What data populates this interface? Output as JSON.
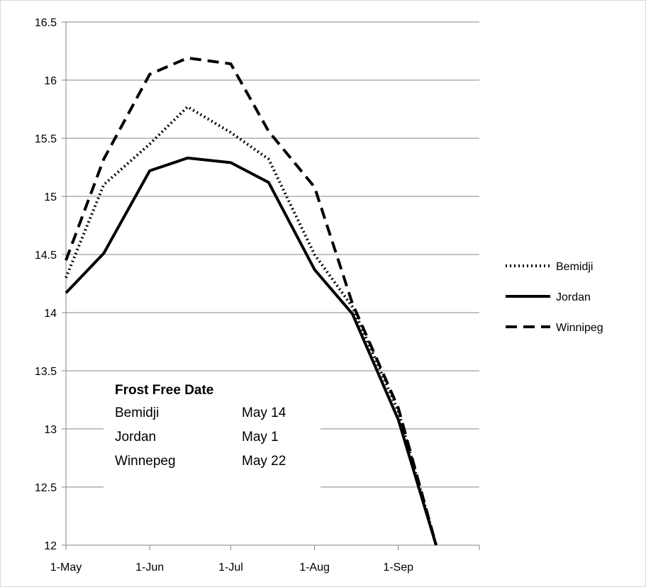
{
  "chart_data": {
    "type": "line",
    "title": "",
    "xlabel": "",
    "ylabel": "",
    "x_tick_labels": [
      "1-May",
      "1-Jun",
      "1-Jul",
      "1-Aug",
      "1-Sep"
    ],
    "x": [
      "2023-05-01",
      "2023-05-15",
      "2023-06-01",
      "2023-06-15",
      "2023-07-01",
      "2023-07-15",
      "2023-08-01",
      "2023-08-15",
      "2023-09-01",
      "2023-09-15"
    ],
    "ylim": [
      12,
      16.5
    ],
    "y_ticks": [
      12,
      12.5,
      13,
      13.5,
      14,
      14.5,
      15,
      15.5,
      16,
      16.5
    ],
    "y_tick_labels": [
      "12",
      "12.5",
      "13",
      "13.5",
      "14",
      "14.5",
      "15",
      "15.5",
      "16",
      "16.5"
    ],
    "grid": "horizontal",
    "legend_position": "right",
    "series": [
      {
        "name": "Bemidji",
        "style": "dotted",
        "values": [
          14.3,
          15.1,
          15.45,
          15.77,
          15.55,
          15.32,
          14.5,
          14.05,
          13.15,
          12.0
        ]
      },
      {
        "name": "Jordan",
        "style": "solid",
        "values": [
          14.17,
          14.51,
          15.22,
          15.33,
          15.29,
          15.12,
          14.37,
          13.99,
          13.08,
          12.0
        ]
      },
      {
        "name": "Winnipeg",
        "style": "dashed",
        "values": [
          14.45,
          15.32,
          16.05,
          16.19,
          16.14,
          15.56,
          15.08,
          14.08,
          13.18,
          12.0
        ]
      }
    ],
    "annotation": {
      "title": "Frost Free Date",
      "rows": [
        {
          "station": "Bemidji",
          "date": "May 14"
        },
        {
          "station": "Jordan",
          "date": "May 1"
        },
        {
          "station": "Winnepeg",
          "date": "May 22"
        }
      ]
    },
    "colors": {
      "line": "#000000",
      "grid": "#868686",
      "axis": "#868686",
      "frame": "#d9d9d9"
    }
  }
}
